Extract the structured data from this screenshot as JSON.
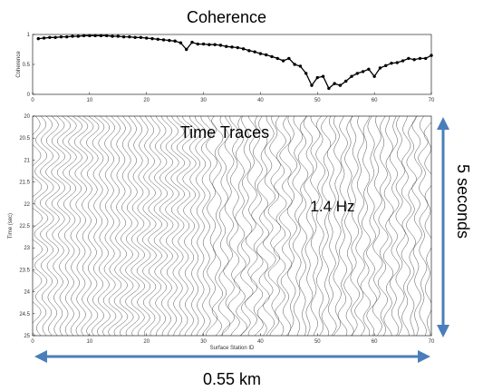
{
  "annotations": {
    "coherence_title": "Coherence",
    "traces_title": "Time Traces",
    "frequency_label": "1.4 Hz",
    "time_span_label": "5 seconds",
    "distance_label": "0.55 km",
    "arrow_color": "#4a7ebb"
  },
  "chart_data": [
    {
      "type": "line",
      "title": "Coherence",
      "xlabel": "",
      "ylabel": "Coherence",
      "xlim": [
        0,
        70
      ],
      "ylim": [
        0,
        1
      ],
      "xticks": [
        "0",
        "10",
        "20",
        "30",
        "40",
        "50",
        "60",
        "70"
      ],
      "yticks": [
        "0",
        "0.5",
        "1"
      ],
      "grid": false,
      "marker": "dot",
      "series": [
        {
          "x": [
            1,
            2,
            3,
            4,
            5,
            6,
            7,
            8,
            9,
            10,
            11,
            12,
            13,
            14,
            15,
            16,
            17,
            18,
            19,
            20,
            21,
            22,
            23,
            24,
            25,
            26,
            27,
            28,
            29,
            30,
            31,
            32,
            33,
            34,
            35,
            36,
            37,
            38,
            39,
            40,
            41,
            42,
            43,
            44,
            45,
            46,
            47,
            48,
            49,
            50,
            51,
            52,
            53,
            54,
            55,
            56,
            57,
            58,
            59,
            60,
            61,
            62,
            63,
            64,
            65,
            66,
            67,
            68,
            69,
            70
          ],
          "y": [
            0.93,
            0.94,
            0.95,
            0.95,
            0.96,
            0.96,
            0.97,
            0.97,
            0.98,
            0.98,
            0.98,
            0.98,
            0.98,
            0.97,
            0.97,
            0.96,
            0.96,
            0.95,
            0.95,
            0.94,
            0.93,
            0.92,
            0.91,
            0.9,
            0.89,
            0.86,
            0.75,
            0.87,
            0.84,
            0.84,
            0.83,
            0.83,
            0.82,
            0.8,
            0.79,
            0.78,
            0.76,
            0.73,
            0.71,
            0.68,
            0.66,
            0.63,
            0.6,
            0.56,
            0.6,
            0.5,
            0.47,
            0.35,
            0.15,
            0.28,
            0.3,
            0.1,
            0.18,
            0.15,
            0.22,
            0.3,
            0.35,
            0.38,
            0.42,
            0.3,
            0.44,
            0.48,
            0.52,
            0.53,
            0.56,
            0.6,
            0.58,
            0.6,
            0.6,
            0.65
          ]
        }
      ]
    },
    {
      "type": "line",
      "title": "Time Traces",
      "xlabel": "Surface Station ID",
      "ylabel": "Time (sec)",
      "xlim": [
        0,
        70
      ],
      "ylim": [
        25,
        20
      ],
      "xticks": [
        "0",
        "10",
        "20",
        "30",
        "40",
        "50",
        "60",
        "70"
      ],
      "yticks": [
        "20",
        "20.5",
        "21",
        "21.5",
        "22",
        "22.5",
        "23",
        "23.5",
        "24",
        "24.5",
        "25"
      ],
      "y_axis_inverted": true,
      "grid": false,
      "trace_count": 70,
      "dominant_frequency_hz": 1.4,
      "time_window_s": [
        20,
        25
      ]
    }
  ]
}
